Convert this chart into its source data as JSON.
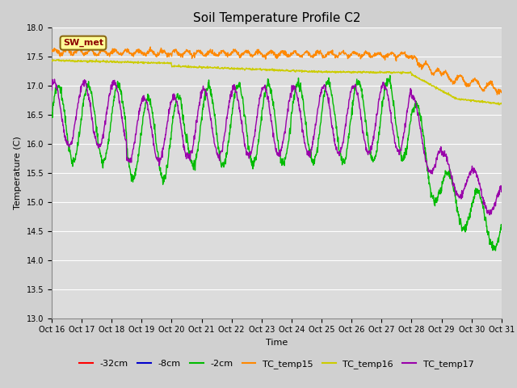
{
  "title": "Soil Temperature Profile C2",
  "xlabel": "Time",
  "ylabel": "Temperature (C)",
  "ylim": [
    13.0,
    18.0
  ],
  "yticks": [
    13.0,
    13.5,
    14.0,
    14.5,
    15.0,
    15.5,
    16.0,
    16.5,
    17.0,
    17.5,
    18.0
  ],
  "xtick_labels": [
    "Oct 16",
    "Oct 17",
    "Oct 18",
    "Oct 19",
    "Oct 20",
    "Oct 21",
    "Oct 22",
    "Oct 23",
    "Oct 24",
    "Oct 25",
    "Oct 26",
    "Oct 27",
    "Oct 28",
    "Oct 29",
    "Oct 30",
    "Oct 31"
  ],
  "series": {
    "-32cm": {
      "color": "#ff0000"
    },
    "-8cm": {
      "color": "#0000cc"
    },
    "-2cm": {
      "color": "#00bb00"
    },
    "TC_temp15": {
      "color": "#ff8800"
    },
    "TC_temp16": {
      "color": "#cccc00"
    },
    "TC_temp17": {
      "color": "#9900aa"
    }
  },
  "annotation_text": "SW_met",
  "annotation_color": "#8b0000",
  "annotation_bg": "#ffff99",
  "annotation_border": "#8b6914",
  "fig_bg_color": "#d0d0d0",
  "plot_bg_color": "#dcdcdc",
  "grid_color": "#ffffff",
  "title_fontsize": 11,
  "axis_fontsize": 8,
  "tick_fontsize": 7,
  "legend_fontsize": 8
}
